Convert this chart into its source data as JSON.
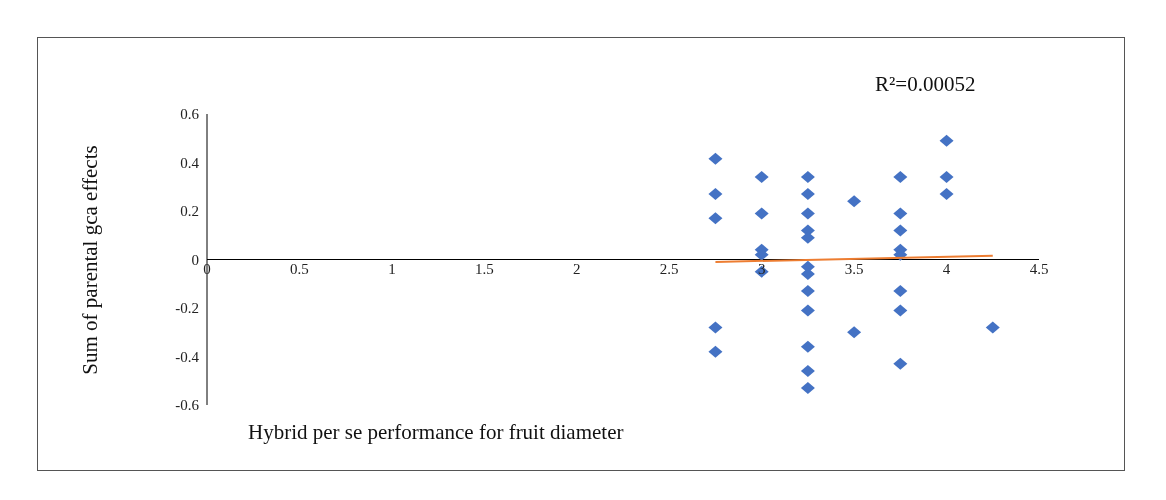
{
  "chart_data": {
    "type": "scatter",
    "xlabel": "Hybrid per se performance for fruit diameter",
    "ylabel": "Sum of parental gca effects",
    "annotations": [
      "R²=0.00052"
    ],
    "xlim": [
      0,
      4.5
    ],
    "xticks": [
      0,
      0.5,
      1,
      1.5,
      2,
      2.5,
      3,
      3.5,
      4,
      4.5
    ],
    "ylim": [
      -0.6,
      0.6
    ],
    "yticks": [
      -0.6,
      -0.4,
      -0.2,
      0,
      0.2,
      0.4,
      0.6
    ],
    "grid": false,
    "legend": false,
    "marker": "diamond",
    "series": [
      {
        "color": "#4472c4",
        "x": [
          2.75,
          2.75,
          2.75,
          2.75,
          2.75,
          3,
          3,
          3,
          3,
          3,
          3.25,
          3.25,
          3.25,
          3.25,
          3.25,
          3.25,
          3.25,
          3.25,
          3.25,
          3.25,
          3.25,
          3.25,
          3.5,
          3.5,
          3.75,
          3.75,
          3.75,
          3.75,
          3.75,
          3.75,
          3.75,
          3.75,
          4,
          4,
          4,
          4.25
        ],
        "values": [
          0.415,
          0.27,
          0.17,
          -0.28,
          -0.38,
          0.34,
          0.19,
          0.04,
          0.02,
          -0.05,
          0.34,
          0.27,
          0.19,
          0.12,
          0.09,
          -0.03,
          -0.06,
          -0.13,
          -0.21,
          -0.36,
          -0.46,
          -0.53,
          0.24,
          -0.3,
          0.34,
          0.19,
          0.12,
          0.04,
          0.02,
          -0.13,
          -0.21,
          -0.43,
          0.49,
          0.34,
          0.27,
          -0.28
        ]
      },
      {
        "type": "line",
        "color": "#ed7d31",
        "marker": "none",
        "x": [
          2.75,
          4.25
        ],
        "values": [
          -0.01,
          0.015
        ]
      }
    ]
  }
}
